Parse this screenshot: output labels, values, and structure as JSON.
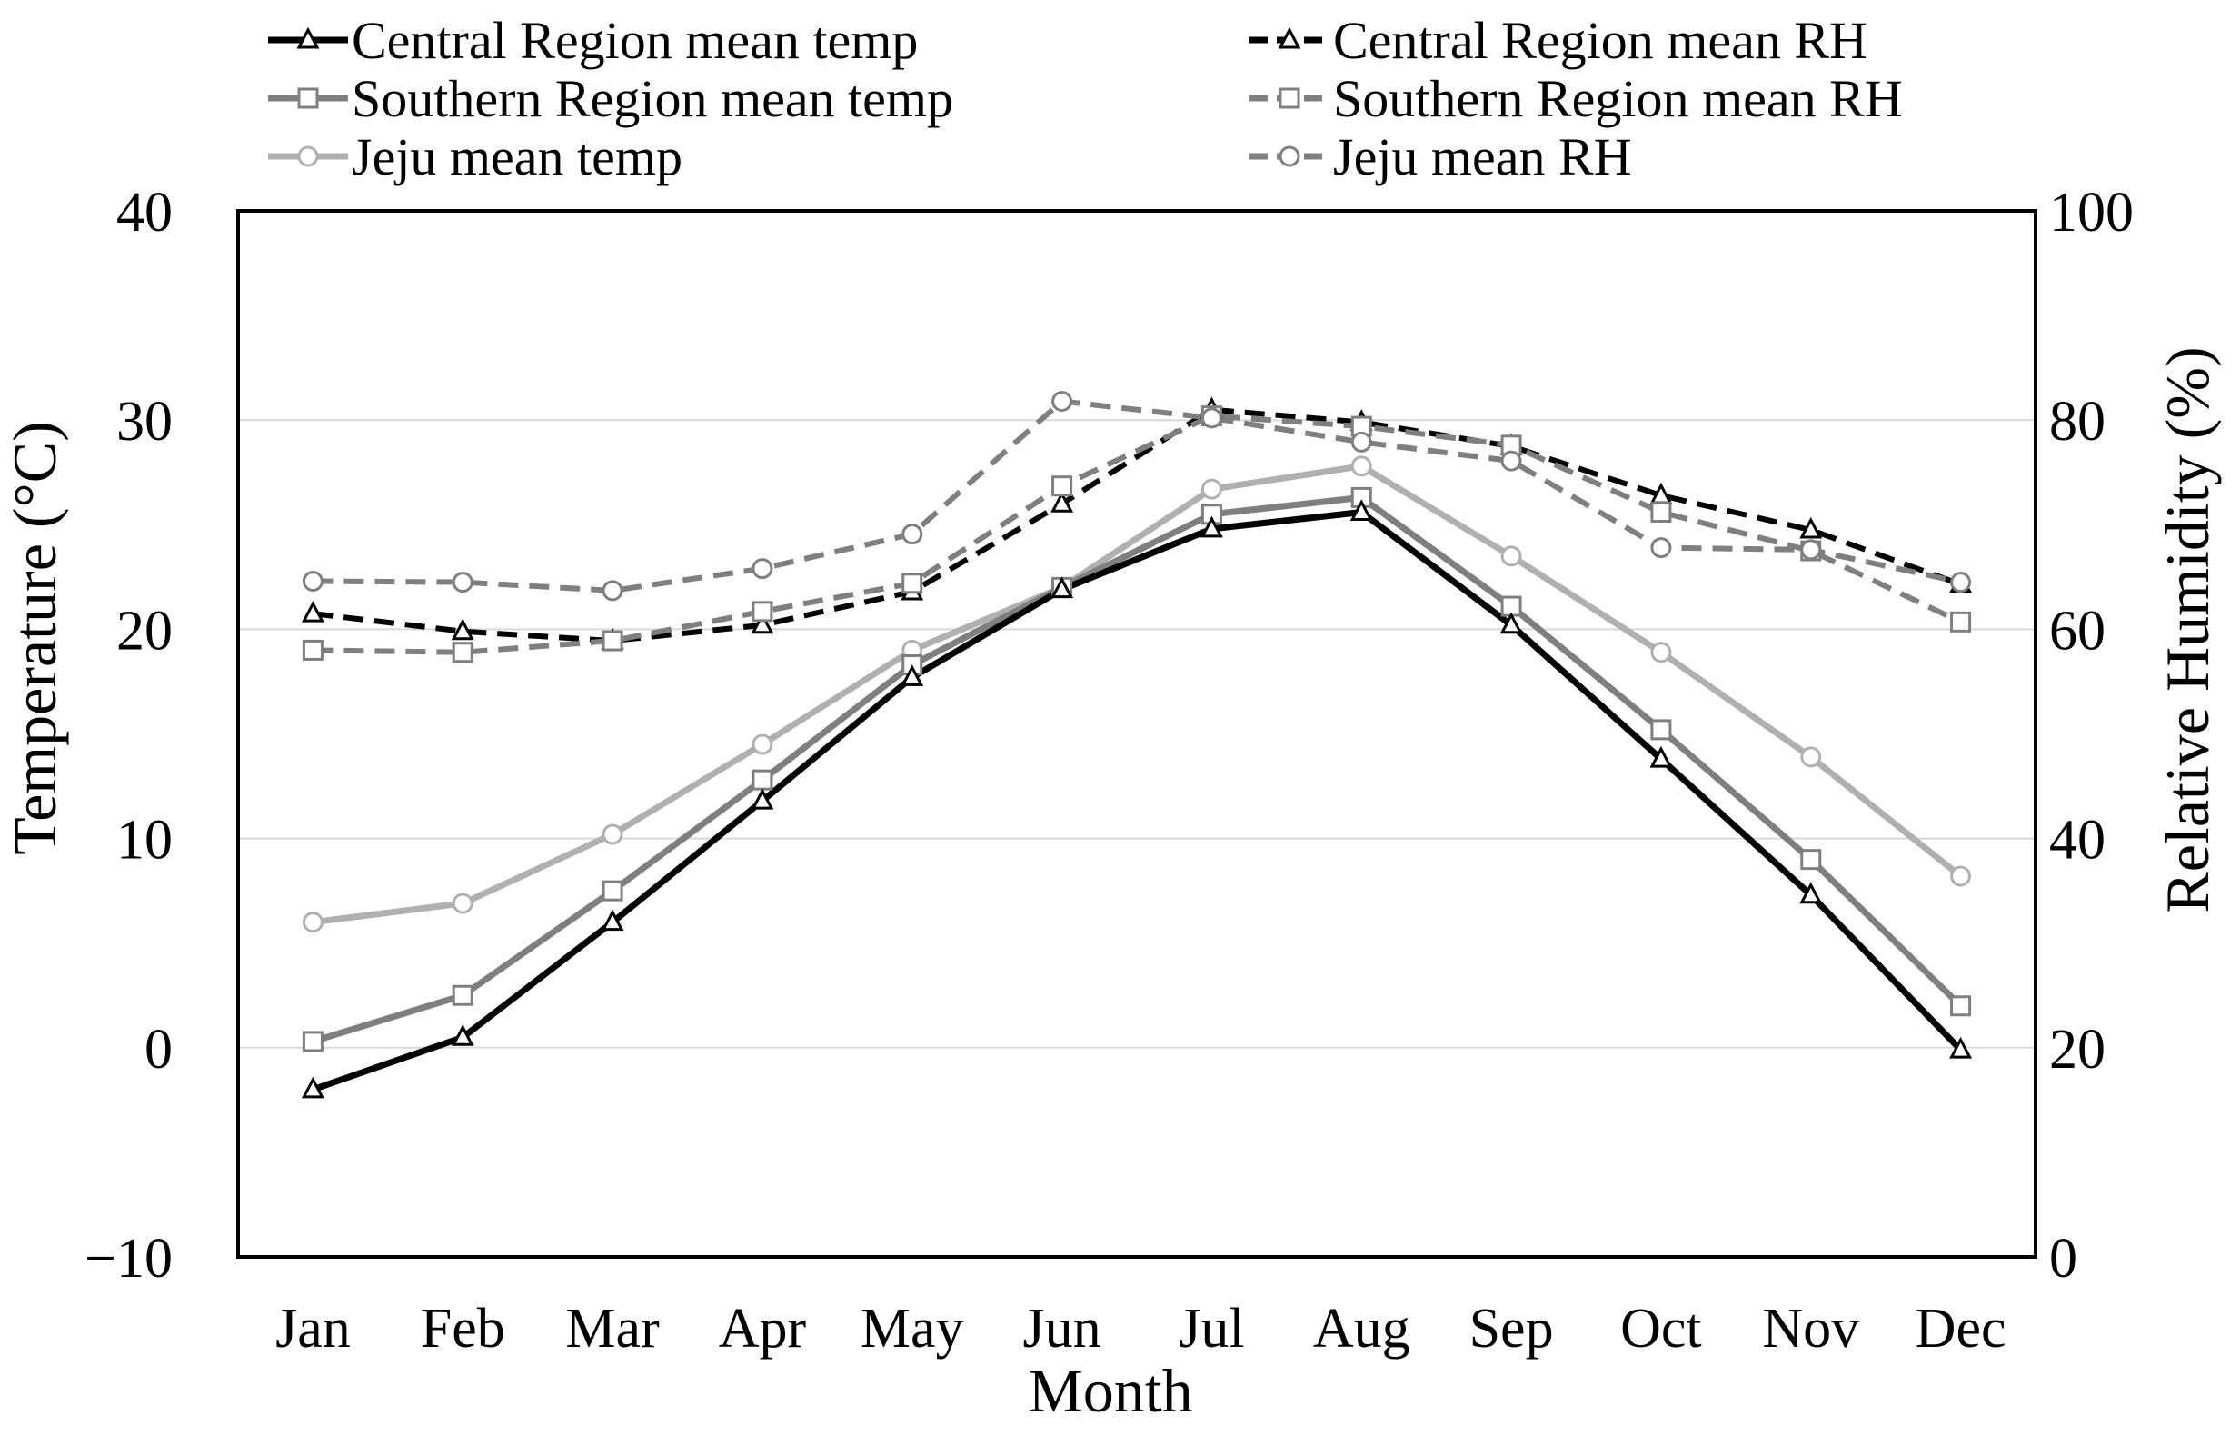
{
  "chart_data": {
    "type": "line",
    "title": "",
    "xlabel": "Month",
    "ylabel_left": "Temperature (°C)",
    "ylabel_right": "Relative Humidity (%)",
    "categories": [
      "Jan",
      "Feb",
      "Mar",
      "Apr",
      "May",
      "Jun",
      "Jul",
      "Aug",
      "Sep",
      "Oct",
      "Nov",
      "Dec"
    ],
    "ylim_left": [
      -10,
      40
    ],
    "ylim_right": [
      0,
      100
    ],
    "yticks_left": [
      "−10",
      "0",
      "10",
      "20",
      "30",
      "40"
    ],
    "yticks_right": [
      "0",
      "20",
      "40",
      "60",
      "80",
      "100"
    ],
    "grid": true,
    "legend_position": "top",
    "series": [
      {
        "name": "Central Region mean temp",
        "axis": "left",
        "color": "#000000",
        "dash": "solid",
        "marker": "triangle",
        "values": [
          -2.0,
          0.5,
          6.0,
          11.8,
          17.7,
          21.9,
          24.8,
          25.6,
          20.2,
          13.8,
          7.3,
          -0.1
        ]
      },
      {
        "name": "Southern Region mean temp",
        "axis": "left",
        "color": "#7f7f7f",
        "dash": "solid",
        "marker": "square",
        "values": [
          0.3,
          2.5,
          7.5,
          12.8,
          18.3,
          22.0,
          25.5,
          26.3,
          21.1,
          15.2,
          9.0,
          2.0
        ]
      },
      {
        "name": "Jeju mean temp",
        "axis": "left",
        "color": "#b0b0b0",
        "dash": "solid",
        "marker": "circle",
        "values": [
          6.0,
          6.9,
          10.2,
          14.5,
          19.0,
          22.0,
          26.7,
          27.8,
          23.5,
          18.9,
          13.9,
          8.2
        ]
      },
      {
        "name": "Central Region mean RH",
        "axis": "right",
        "color": "#000000",
        "dash": "dashed",
        "marker": "triangle",
        "values": [
          61.5,
          59.8,
          58.9,
          60.4,
          63.6,
          72.0,
          81.0,
          79.8,
          77.5,
          72.8,
          69.5,
          64.3
        ]
      },
      {
        "name": "Southern Region mean RH",
        "axis": "right",
        "color": "#7f7f7f",
        "dash": "dashed",
        "marker": "square",
        "values": [
          58.0,
          57.8,
          58.9,
          61.7,
          64.4,
          73.7,
          80.4,
          79.4,
          77.6,
          71.2,
          67.5,
          60.7
        ]
      },
      {
        "name": "Jeju mean RH",
        "axis": "right",
        "color": "#7f7f7f",
        "dash": "dashed",
        "marker": "circle",
        "values": [
          64.6,
          64.5,
          63.7,
          65.8,
          69.1,
          81.8,
          80.2,
          77.9,
          76.1,
          67.8,
          67.6,
          64.5
        ]
      }
    ]
  }
}
